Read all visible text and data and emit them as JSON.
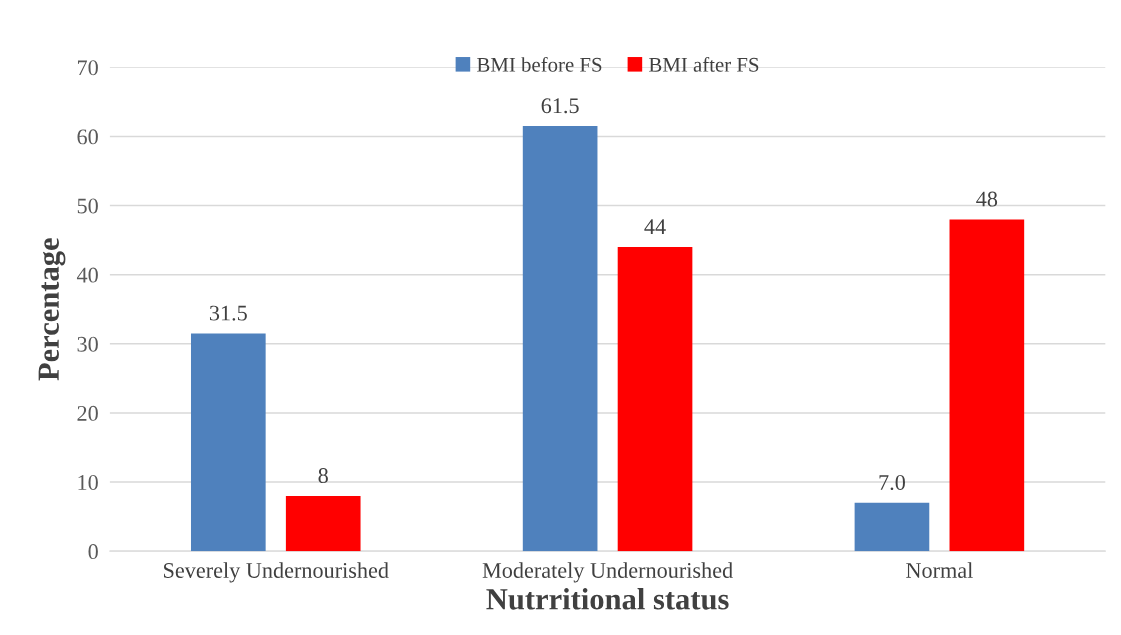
{
  "chart_data": {
    "type": "bar",
    "xlabel": "Nutrritional status",
    "ylabel": "Percentage",
    "categories": [
      "Severely Undernourished",
      "Moderately Undernourished",
      "Normal"
    ],
    "series": [
      {
        "name": "BMI before FS",
        "color": "#4f81bd",
        "values": [
          31.5,
          61.5,
          7.0
        ],
        "value_labels": [
          "31.5",
          "61.5",
          "7.0"
        ]
      },
      {
        "name": "BMI after FS",
        "color": "#ff0000",
        "values": [
          8,
          44,
          48
        ],
        "value_labels": [
          "8",
          "44",
          "48"
        ]
      }
    ],
    "ylim": [
      0,
      70
    ],
    "yticks": [
      0,
      10,
      20,
      30,
      40,
      50,
      60,
      70
    ],
    "grid": "y",
    "legend": "top"
  }
}
